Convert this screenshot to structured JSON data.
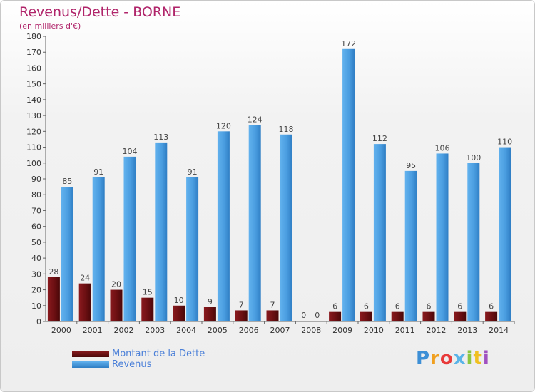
{
  "title": "Revenus/Dette - BORNE",
  "subtitle": "(en milliers d'€)",
  "logo": {
    "letters": [
      "P",
      "r",
      "o",
      "x",
      "i",
      "t",
      "i"
    ],
    "colors": [
      "#3d8fd6",
      "#f0a020",
      "#e83a3a",
      "#5ab4e8",
      "#8cc63f",
      "#f0c020",
      "#a050c0"
    ]
  },
  "colors": {
    "dette": "#6b0f12",
    "revenus": "#4a9de0",
    "title": "#b0246a"
  },
  "chart_data": {
    "type": "bar",
    "title": "Revenus/Dette - BORNE",
    "subtitle": "(en milliers d'€)",
    "categories": [
      "2000",
      "2001",
      "2002",
      "2003",
      "2004",
      "2005",
      "2006",
      "2007",
      "2008",
      "2009",
      "2010",
      "2011",
      "2012",
      "2013",
      "2014"
    ],
    "series": [
      {
        "name": "Montant de la Dette",
        "color": "#6b0f12",
        "values": [
          28,
          24,
          20,
          15,
          10,
          9,
          7,
          7,
          0,
          6,
          6,
          6,
          6,
          6,
          6
        ]
      },
      {
        "name": "Revenus",
        "color": "#4a9de0",
        "values": [
          85,
          91,
          104,
          113,
          91,
          120,
          124,
          118,
          0,
          172,
          112,
          95,
          106,
          100,
          110
        ]
      }
    ],
    "ylim": [
      0,
      180
    ],
    "yticks": [
      0,
      10,
      20,
      30,
      40,
      50,
      60,
      70,
      80,
      90,
      100,
      110,
      120,
      130,
      140,
      150,
      160,
      170,
      180
    ],
    "grid": false,
    "legend": "bottom-left"
  }
}
